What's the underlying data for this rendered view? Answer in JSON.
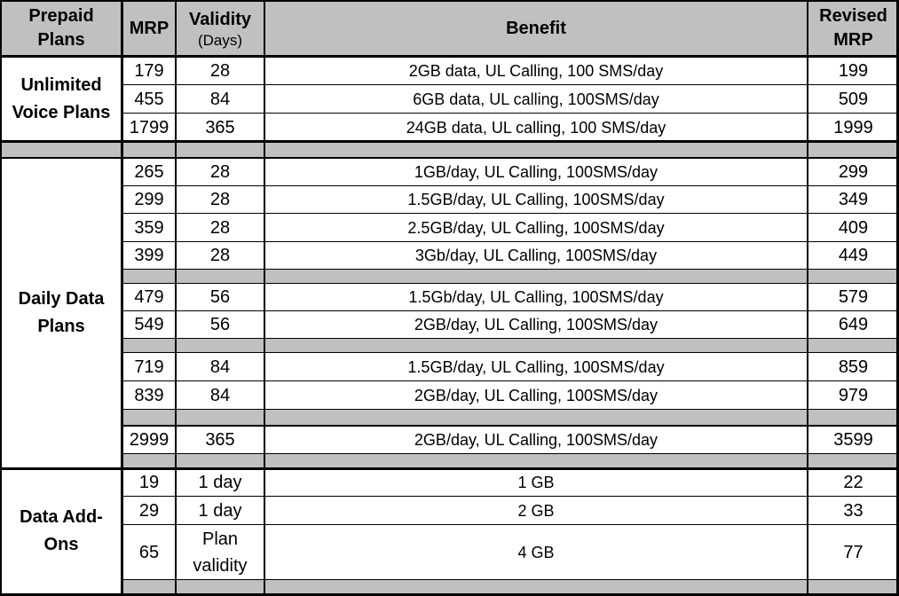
{
  "header": {
    "plans_line1": "Prepaid",
    "plans_line2": "Plans",
    "mrp": "MRP",
    "validity": "Validity",
    "validity_unit": "(Days)",
    "benefit": "Benefit",
    "revised_line1": "Revised",
    "revised_line2": "MRP"
  },
  "categories": {
    "voice": {
      "line1": "Unlimited",
      "line2": "Voice Plans"
    },
    "daily": {
      "line1": "Daily Data",
      "line2": "Plans"
    },
    "addons": {
      "line1": "Data Add-",
      "line2": "Ons"
    }
  },
  "voice_rows": [
    {
      "mrp": "179",
      "validity": "28",
      "benefit": "2GB data, UL Calling, 100 SMS/day",
      "revised": "199"
    },
    {
      "mrp": "455",
      "validity": "84",
      "benefit": "6GB data, UL calling, 100SMS/day",
      "revised": "509"
    },
    {
      "mrp": "1799",
      "validity": "365",
      "benefit": "24GB data, UL calling, 100 SMS/day",
      "revised": "1999"
    }
  ],
  "daily_rows": [
    {
      "mrp": "265",
      "validity": "28",
      "benefit": "1GB/day, UL Calling, 100SMS/day",
      "revised": "299"
    },
    {
      "mrp": "299",
      "validity": "28",
      "benefit": "1.5GB/day, UL Calling, 100SMS/day",
      "revised": "349"
    },
    {
      "mrp": "359",
      "validity": "28",
      "benefit": "2.5GB/day, UL Calling, 100SMS/day",
      "revised": "409"
    },
    {
      "mrp": "399",
      "validity": "28",
      "benefit": "3Gb/day, UL Calling, 100SMS/day",
      "revised": "449"
    },
    {
      "mrp": "479",
      "validity": "56",
      "benefit": "1.5Gb/day, UL Calling, 100SMS/day",
      "revised": "579"
    },
    {
      "mrp": "549",
      "validity": "56",
      "benefit": "2GB/day, UL Calling, 100SMS/day",
      "revised": "649"
    },
    {
      "mrp": "719",
      "validity": "84",
      "benefit": "1.5GB/day, UL Calling, 100SMS/day",
      "revised": "859"
    },
    {
      "mrp": "839",
      "validity": "84",
      "benefit": "2GB/day, UL Calling, 100SMS/day",
      "revised": "979"
    },
    {
      "mrp": "2999",
      "validity": "365",
      "benefit": "2GB/day, UL Calling, 100SMS/day",
      "revised": "3599"
    }
  ],
  "addon_rows": [
    {
      "mrp": "19",
      "validity": "1 day",
      "benefit": "1 GB",
      "revised": "22"
    },
    {
      "mrp": "29",
      "validity": "1 day",
      "benefit": "2 GB",
      "revised": "33"
    },
    {
      "mrp": "65",
      "validity_line1": "Plan",
      "validity_line2": "validity",
      "benefit": "4 GB",
      "revised": "77"
    }
  ],
  "colors": {
    "header_fill": "#c0c0c0",
    "separator_fill": "#c0c0c0",
    "border": "#000000"
  }
}
